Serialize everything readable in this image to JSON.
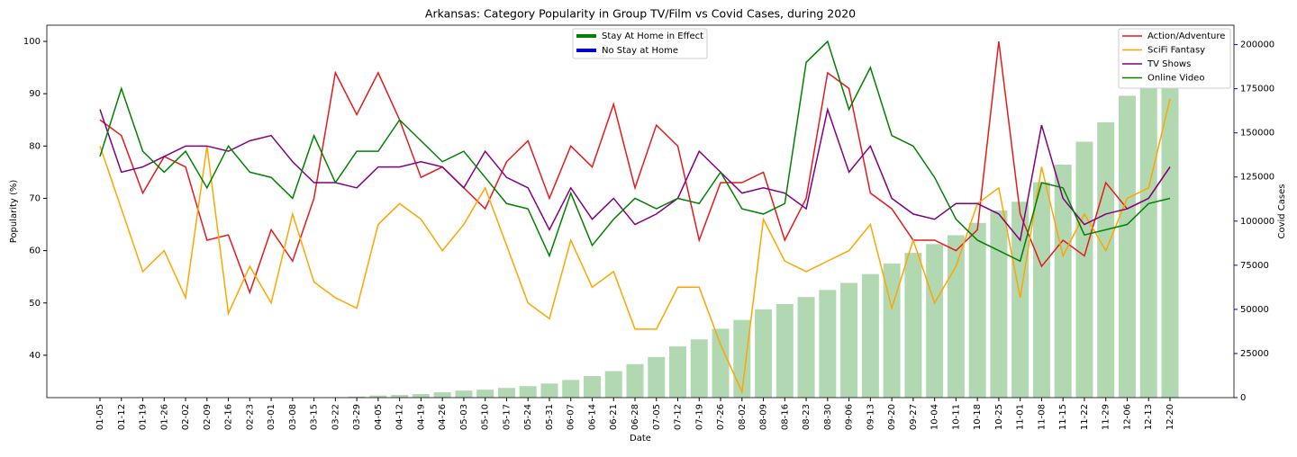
{
  "chart_data": {
    "type": "line",
    "title": "Arkansas: Category Popularity in Group TV/Film vs Covid Cases, during 2020",
    "x_label": "Date",
    "y_label": "Popularity (%)",
    "y2_label": "Covid Cases",
    "categories": [
      "01-05",
      "01-12",
      "01-19",
      "01-26",
      "02-02",
      "02-09",
      "02-16",
      "02-23",
      "03-01",
      "03-08",
      "03-15",
      "03-22",
      "03-29",
      "04-05",
      "04-12",
      "04-19",
      "04-26",
      "05-03",
      "05-10",
      "05-17",
      "05-24",
      "05-31",
      "06-07",
      "06-14",
      "06-21",
      "06-28",
      "07-05",
      "07-12",
      "07-19",
      "07-26",
      "08-02",
      "08-09",
      "08-16",
      "08-23",
      "08-30",
      "09-06",
      "09-13",
      "09-20",
      "09-27",
      "10-04",
      "10-11",
      "10-18",
      "10-25",
      "11-01",
      "11-08",
      "11-15",
      "11-22",
      "11-29",
      "12-06",
      "12-13",
      "12-20"
    ],
    "series": [
      {
        "name": "Action/Adventure",
        "color": "#e41a1c",
        "values": [
          85,
          82,
          71,
          78,
          76,
          62,
          63,
          52,
          64,
          58,
          70,
          94,
          86,
          94,
          85,
          74,
          76,
          72,
          68,
          77,
          81,
          70,
          80,
          76,
          88,
          72,
          84,
          80,
          62,
          73,
          73,
          75,
          62,
          70,
          94,
          91,
          71,
          68,
          62,
          62,
          60,
          64,
          100,
          67,
          57,
          62,
          59,
          73,
          68,
          70,
          76
        ]
      },
      {
        "name": "SciFi Fantasy",
        "color": "#ffa500",
        "values": [
          80,
          68,
          56,
          60,
          51,
          80,
          48,
          57,
          50,
          67,
          54,
          51,
          49,
          65,
          69,
          66,
          60,
          65,
          72,
          61,
          50,
          47,
          62,
          53,
          56,
          45,
          45,
          53,
          53,
          42,
          33,
          66,
          58,
          56,
          58,
          60,
          65,
          49,
          62,
          50,
          57,
          69,
          72,
          51,
          76,
          59,
          67,
          60,
          70,
          72,
          89
        ]
      },
      {
        "name": "TV Shows",
        "color": "#800080",
        "values": [
          87,
          75,
          76,
          78,
          80,
          80,
          79,
          81,
          82,
          77,
          73,
          73,
          72,
          76,
          76,
          77,
          76,
          72,
          79,
          74,
          72,
          64,
          72,
          66,
          70,
          65,
          67,
          70,
          79,
          75,
          71,
          72,
          71,
          68,
          87,
          75,
          80,
          70,
          67,
          66,
          69,
          69,
          67,
          62,
          84,
          70,
          65,
          67,
          68,
          70,
          76
        ]
      },
      {
        "name": "Online Video",
        "color": "#008000",
        "values": [
          78,
          91,
          79,
          75,
          79,
          72,
          80,
          75,
          74,
          70,
          82,
          73,
          79,
          79,
          85,
          81,
          77,
          79,
          74,
          69,
          68,
          59,
          71,
          61,
          66,
          70,
          68,
          70,
          69,
          75,
          68,
          67,
          69,
          96,
          100,
          87,
          95,
          82,
          80,
          74,
          66,
          62,
          60,
          58,
          73,
          72,
          63,
          64,
          65,
          69,
          70
        ]
      },
      {
        "type": "bar",
        "axis": "y2",
        "color": "#b2d8b2",
        "values": [
          0,
          0,
          0,
          0,
          0,
          0,
          0,
          0,
          0,
          0,
          0,
          200,
          600,
          1200,
          1500,
          2000,
          3000,
          4000,
          4500,
          5500,
          6500,
          8000,
          10000,
          12200,
          15000,
          19000,
          23000,
          29000,
          33000,
          39000,
          44000,
          50000,
          53000,
          57000,
          61000,
          65000,
          70000,
          76000,
          82000,
          87000,
          92000,
          99000,
          106000,
          111000,
          122000,
          132000,
          145000,
          156000,
          171000,
          187000,
          200000
        ]
      }
    ],
    "state_legend": [
      {
        "name": "Stay At Home in Effect",
        "color": "#008000"
      },
      {
        "name": "No Stay at Home",
        "color": "#0000cd"
      }
    ],
    "ylim": [
      31.9,
      103.1
    ],
    "yticks": [
      40,
      50,
      60,
      70,
      80,
      90,
      100
    ],
    "y2lim": [
      0,
      211000
    ],
    "y2ticks": [
      0,
      25000,
      50000,
      75000,
      100000,
      125000,
      150000,
      175000,
      200000
    ],
    "y2_color": "#0000cd"
  }
}
